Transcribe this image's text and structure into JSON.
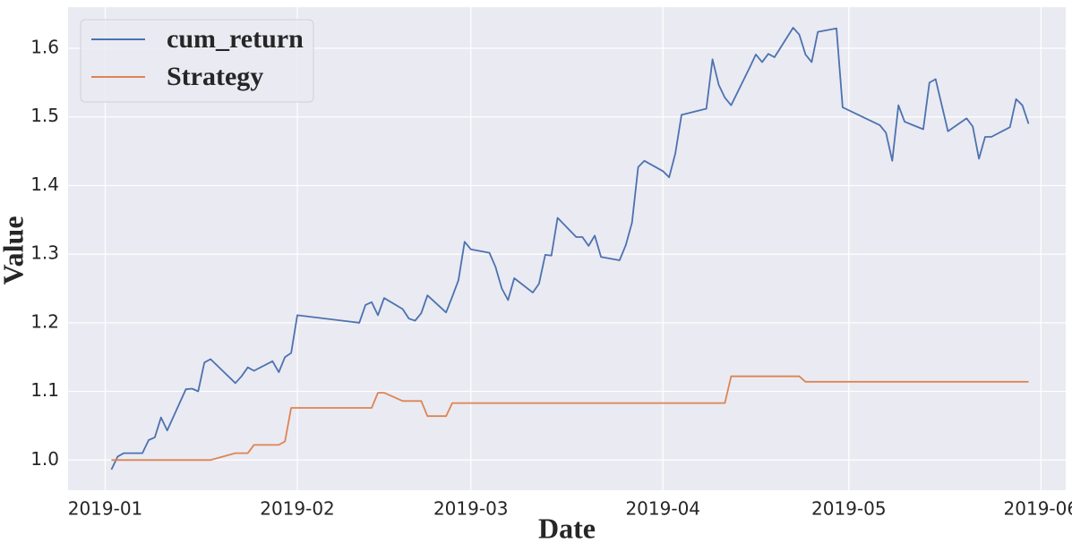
{
  "chart_data": {
    "type": "line",
    "xlabel": "Date",
    "ylabel": "Value",
    "x": [
      "2019-01-02",
      "2019-01-03",
      "2019-01-04",
      "2019-01-07",
      "2019-01-08",
      "2019-01-09",
      "2019-01-10",
      "2019-01-11",
      "2019-01-14",
      "2019-01-15",
      "2019-01-16",
      "2019-01-17",
      "2019-01-18",
      "2019-01-22",
      "2019-01-23",
      "2019-01-24",
      "2019-01-25",
      "2019-01-28",
      "2019-01-29",
      "2019-01-30",
      "2019-01-31",
      "2019-02-01",
      "2019-02-11",
      "2019-02-12",
      "2019-02-13",
      "2019-02-14",
      "2019-02-15",
      "2019-02-18",
      "2019-02-19",
      "2019-02-20",
      "2019-02-21",
      "2019-02-22",
      "2019-02-25",
      "2019-02-26",
      "2019-02-27",
      "2019-02-28",
      "2019-03-01",
      "2019-03-04",
      "2019-03-05",
      "2019-03-06",
      "2019-03-07",
      "2019-03-08",
      "2019-03-11",
      "2019-03-12",
      "2019-03-13",
      "2019-03-14",
      "2019-03-15",
      "2019-03-18",
      "2019-03-19",
      "2019-03-20",
      "2019-03-21",
      "2019-03-22",
      "2019-03-25",
      "2019-03-26",
      "2019-03-27",
      "2019-03-28",
      "2019-03-29",
      "2019-04-01",
      "2019-04-02",
      "2019-04-03",
      "2019-04-04",
      "2019-04-08",
      "2019-04-09",
      "2019-04-10",
      "2019-04-11",
      "2019-04-12",
      "2019-04-15",
      "2019-04-16",
      "2019-04-17",
      "2019-04-18",
      "2019-04-19",
      "2019-04-22",
      "2019-04-23",
      "2019-04-24",
      "2019-04-25",
      "2019-04-26",
      "2019-04-29",
      "2019-04-30",
      "2019-05-06",
      "2019-05-07",
      "2019-05-08",
      "2019-05-09",
      "2019-05-10",
      "2019-05-13",
      "2019-05-14",
      "2019-05-15",
      "2019-05-17",
      "2019-05-20",
      "2019-05-21",
      "2019-05-22",
      "2019-05-23",
      "2019-05-24",
      "2019-05-27",
      "2019-05-28",
      "2019-05-29",
      "2019-05-30"
    ],
    "series": [
      {
        "name": "cum_return",
        "color": "#4c72b0",
        "values": [
          0.986,
          1.005,
          1.01,
          1.01,
          1.029,
          1.033,
          1.062,
          1.043,
          1.103,
          1.104,
          1.1,
          1.142,
          1.147,
          1.112,
          1.122,
          1.135,
          1.13,
          1.144,
          1.128,
          1.15,
          1.156,
          1.211,
          1.2,
          1.226,
          1.23,
          1.211,
          1.236,
          1.22,
          1.206,
          1.203,
          1.214,
          1.24,
          1.215,
          1.238,
          1.262,
          1.318,
          1.307,
          1.302,
          1.281,
          1.25,
          1.233,
          1.265,
          1.244,
          1.257,
          1.299,
          1.298,
          1.353,
          1.325,
          1.325,
          1.312,
          1.327,
          1.296,
          1.291,
          1.313,
          1.346,
          1.427,
          1.436,
          1.421,
          1.412,
          1.447,
          1.503,
          1.512,
          1.584,
          1.547,
          1.528,
          1.517,
          1.572,
          1.591,
          1.58,
          1.592,
          1.587,
          1.63,
          1.62,
          1.591,
          1.58,
          1.624,
          1.629,
          1.514,
          1.488,
          1.477,
          1.436,
          1.517,
          1.493,
          1.482,
          1.55,
          1.555,
          1.479,
          1.498,
          1.486,
          1.439,
          1.471,
          1.471,
          1.485,
          1.526,
          1.517,
          1.49
        ]
      },
      {
        "name": "Strategy",
        "color": "#dd8452",
        "values": [
          1.0,
          1.0,
          1.0,
          1.0,
          1.0,
          1.0,
          1.0,
          1.0,
          1.0,
          1.0,
          1.0,
          1.0,
          1.0,
          1.01,
          1.01,
          1.01,
          1.022,
          1.022,
          1.022,
          1.027,
          1.076,
          1.076,
          1.076,
          1.076,
          1.076,
          1.098,
          1.098,
          1.086,
          1.086,
          1.086,
          1.086,
          1.064,
          1.064,
          1.083,
          1.083,
          1.083,
          1.083,
          1.083,
          1.083,
          1.083,
          1.083,
          1.083,
          1.083,
          1.083,
          1.083,
          1.083,
          1.083,
          1.083,
          1.083,
          1.083,
          1.083,
          1.083,
          1.083,
          1.083,
          1.083,
          1.083,
          1.083,
          1.083,
          1.083,
          1.083,
          1.083,
          1.083,
          1.083,
          1.083,
          1.083,
          1.122,
          1.122,
          1.122,
          1.122,
          1.122,
          1.122,
          1.122,
          1.122,
          1.114,
          1.114,
          1.114,
          1.114,
          1.114,
          1.114,
          1.114,
          1.114,
          1.114,
          1.114,
          1.114,
          1.114,
          1.114,
          1.114,
          1.114,
          1.114,
          1.114,
          1.114,
          1.114,
          1.114,
          1.114,
          1.114,
          1.114
        ]
      }
    ],
    "xlim": [
      "2018-12-26",
      "2019-06-05"
    ],
    "xticks": [
      {
        "value": "2019-01-01",
        "label": "2019-01"
      },
      {
        "value": "2019-02-01",
        "label": "2019-02"
      },
      {
        "value": "2019-03-01",
        "label": "2019-03"
      },
      {
        "value": "2019-04-01",
        "label": "2019-04"
      },
      {
        "value": "2019-05-01",
        "label": "2019-05"
      },
      {
        "value": "2019-06-01",
        "label": "2019-06"
      }
    ],
    "ylim": [
      0.956,
      1.66
    ],
    "yticks": [
      {
        "value": 1,
        "label": "1.0"
      },
      1.1,
      1.2,
      1.3,
      1.4,
      1.5,
      1.6
    ],
    "grid": true,
    "legend": "upper-left"
  }
}
